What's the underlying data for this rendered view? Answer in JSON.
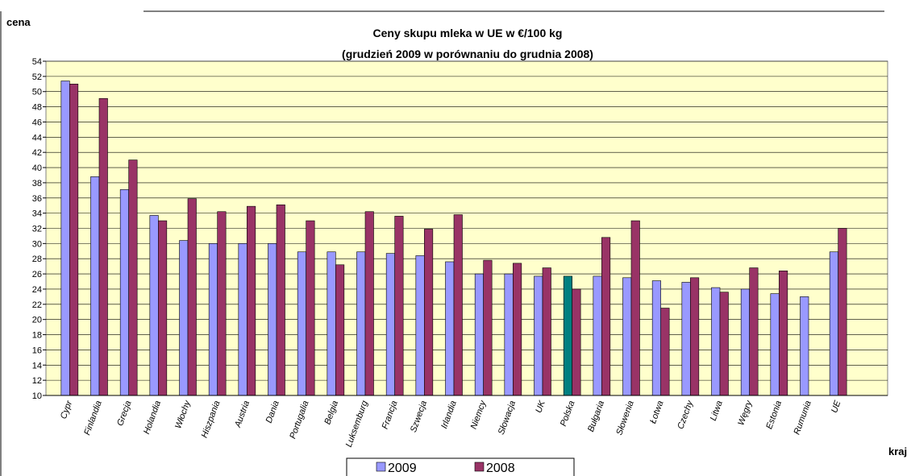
{
  "chart_data": {
    "type": "bar",
    "title": "Ceny skupu mleka w UE w €/100 kg",
    "subtitle": "(grudzień 2009 w porównaniu do grudnia 2008)",
    "y_label": "cena",
    "x_label": "kraj",
    "categories": [
      "Cypr",
      "Finlandia",
      "Grecja",
      "Holandia",
      "Włochy",
      "Hiszpania",
      "Austria",
      "Dania",
      "Portugalia",
      "Belgia",
      "Luksemburg",
      "Francja",
      "Szwecja",
      "Irlandia",
      "Niemcy",
      "Słowacja",
      "UK",
      "Polska",
      "Bułgaria",
      "Słowenia",
      "Łotwa",
      "Czechy",
      "Litwa",
      "Węgry",
      "Estonia",
      "Rumunia",
      "UE"
    ],
    "series": [
      {
        "name": "2009",
        "color": "#9999ff",
        "values": [
          51.4,
          38.8,
          37.1,
          33.7,
          30.4,
          30.0,
          30.0,
          30.0,
          28.9,
          28.9,
          28.9,
          28.7,
          28.4,
          27.6,
          26.0,
          26.0,
          25.7,
          25.7,
          25.7,
          25.5,
          25.1,
          24.9,
          24.2,
          24.0,
          23.4,
          23.0,
          28.9
        ]
      },
      {
        "name": "2008",
        "color": "#993366",
        "values": [
          51.0,
          49.1,
          41.0,
          33.0,
          35.9,
          34.2,
          34.9,
          35.1,
          33.0,
          27.2,
          34.2,
          33.6,
          31.9,
          33.8,
          27.8,
          27.4,
          26.8,
          24.0,
          30.8,
          33.0,
          21.5,
          25.5,
          23.6,
          26.8,
          26.4,
          null,
          32.0
        ]
      }
    ],
    "highlight_category": "Polska",
    "highlight_color": "#008080",
    "ylim": [
      10,
      54
    ],
    "yticks": [
      10,
      12,
      14,
      16,
      18,
      20,
      22,
      24,
      26,
      28,
      30,
      32,
      34,
      36,
      38,
      40,
      42,
      44,
      46,
      48,
      50,
      52,
      54
    ],
    "grid": true,
    "plot_background": "#ffffcc",
    "legend": "bottom"
  }
}
